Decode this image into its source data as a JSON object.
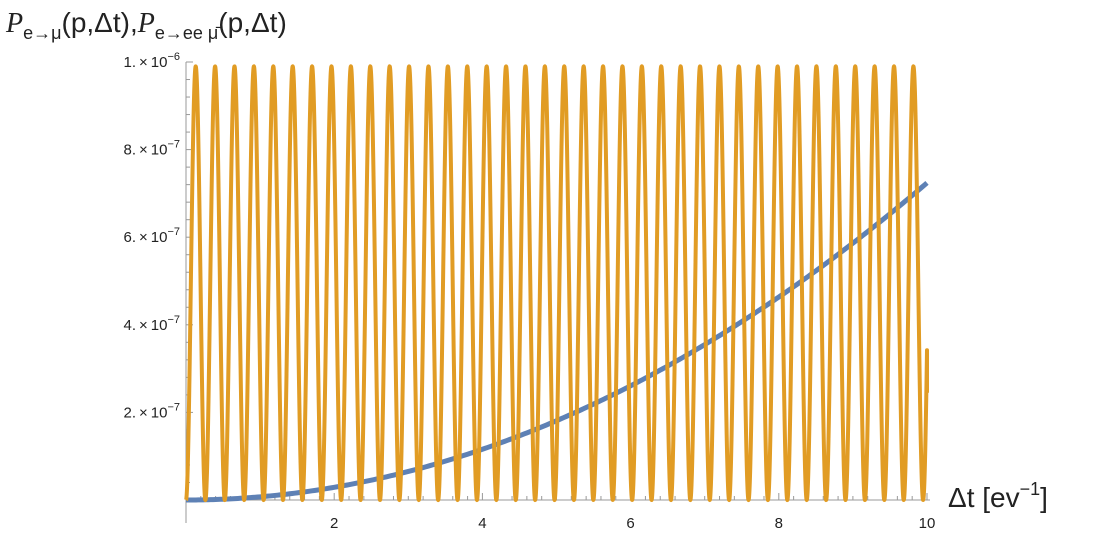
{
  "chart_data": {
    "type": "line",
    "xlabel": "Δt  [ev−1]",
    "xlabel_parts": {
      "main": "Δt  [ev",
      "sup": "−1",
      "close": "]"
    },
    "ylabel": "Pe→μ(p,Δt),Pe→ee μ̄(p,Δt)",
    "ylabel_parts": {
      "p1": "P",
      "sub1": "e→μ",
      "args1": "(p,Δt),",
      "p2": "P",
      "sub2": "e→ee μ̄",
      "args2": "(p,Δt)"
    },
    "xlim": [
      0,
      10
    ],
    "ylim": [
      0,
      1e-06
    ],
    "xticks": [
      {
        "value": 2,
        "label": "2"
      },
      {
        "value": 4,
        "label": "4"
      },
      {
        "value": 6,
        "label": "6"
      },
      {
        "value": 8,
        "label": "8"
      },
      {
        "value": 10,
        "label": "10"
      }
    ],
    "yticks": [
      {
        "value": 2e-07,
        "mantissa": "2.",
        "times": "×",
        "base": "10",
        "exp": "−7"
      },
      {
        "value": 4e-07,
        "mantissa": "4.",
        "times": "×",
        "base": "10",
        "exp": "−7"
      },
      {
        "value": 6e-07,
        "mantissa": "6.",
        "times": "×",
        "base": "10",
        "exp": "−7"
      },
      {
        "value": 8e-07,
        "mantissa": "8.",
        "times": "×",
        "base": "10",
        "exp": "−7"
      },
      {
        "value": 1e-06,
        "mantissa": "1.",
        "times": "×",
        "base": "10",
        "exp": "−6"
      }
    ],
    "grid": false,
    "series": [
      {
        "color": "#5e81b5",
        "x": [
          0,
          1,
          2,
          3,
          4,
          5,
          6,
          7,
          8,
          9,
          10
        ],
        "y": [
          0,
          7.3e-09,
          2.9e-08,
          6.5e-08,
          1.16e-07,
          1.81e-07,
          2.6e-07,
          3.55e-07,
          4.63e-07,
          5.87e-07,
          7.24e-07
        ]
      },
      {
        "color": "#e19c24",
        "function": "sin2",
        "amplitude": 9.9e-07,
        "cycles_per_unit": 3.82,
        "x_end": 10,
        "y_end": 2.45e-07
      }
    ]
  }
}
